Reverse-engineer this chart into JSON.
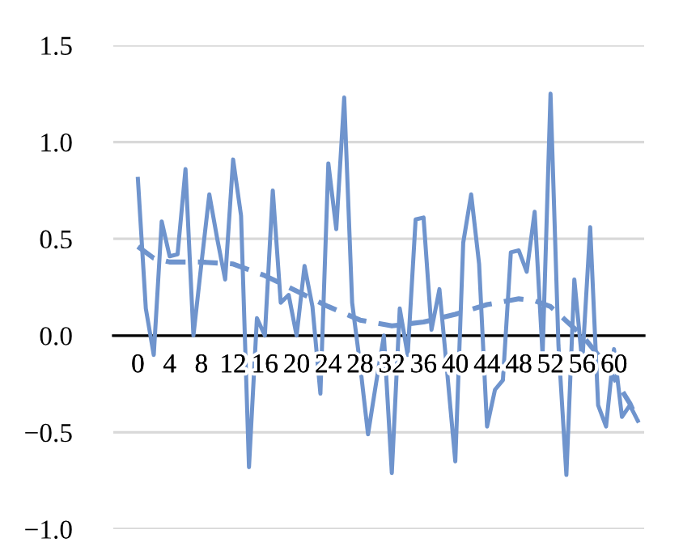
{
  "chart_data": {
    "type": "line",
    "categories": [
      "0",
      null,
      null,
      null,
      "4",
      null,
      null,
      null,
      "8",
      null,
      null,
      null,
      "12",
      null,
      null,
      null,
      "16",
      null,
      null,
      null,
      "20",
      null,
      null,
      null,
      "24",
      null,
      null,
      null,
      "28",
      null,
      null,
      null,
      "32",
      null,
      null,
      null,
      "36",
      null,
      null,
      null,
      "40",
      null,
      null,
      null,
      "44",
      null,
      null,
      null,
      "48",
      null,
      null,
      null,
      "52",
      null,
      null,
      null,
      "56",
      null,
      null,
      null,
      "60",
      null,
      null,
      null
    ],
    "series": [
      {
        "color": "#6f94cd",
        "line_style": "solid",
        "values": [
          0.81,
          0.14,
          -0.1,
          0.59,
          0.41,
          0.42,
          0.86,
          0.0,
          0.37,
          0.73,
          0.5,
          0.29,
          0.91,
          0.62,
          -0.68,
          0.09,
          0.0,
          0.75,
          0.17,
          0.21,
          0.0,
          0.36,
          0.15,
          -0.3,
          0.89,
          0.55,
          1.23,
          0.17,
          -0.15,
          -0.51,
          -0.25,
          0.0,
          -0.71,
          0.14,
          -0.1,
          0.6,
          0.61,
          0.03,
          0.24,
          -0.2,
          -0.65,
          0.48,
          0.73,
          0.37,
          -0.47,
          -0.28,
          -0.23,
          0.43,
          0.44,
          0.33,
          0.64,
          -0.1,
          1.25,
          -0.05,
          -0.72,
          0.29,
          -0.14,
          0.56,
          -0.36,
          -0.47,
          -0.07,
          -0.42,
          -0.36,
          -0.44
        ]
      },
      {
        "color": "#6f94cd",
        "line_style": "dashed",
        "values": [
          0.46,
          null,
          0.4,
          null,
          0.38,
          null,
          null,
          null,
          0.38,
          null,
          null,
          null,
          0.37,
          null,
          null,
          null,
          0.31,
          null,
          null,
          null,
          0.23,
          null,
          null,
          null,
          0.15,
          null,
          null,
          null,
          0.08,
          null,
          null,
          null,
          0.05,
          null,
          null,
          null,
          0.07,
          null,
          null,
          null,
          0.11,
          null,
          null,
          null,
          0.16,
          null,
          null,
          null,
          0.19,
          null,
          0.18,
          null,
          0.15,
          null,
          null,
          null,
          0.0,
          null,
          -0.1,
          null,
          -0.22,
          null,
          -0.35,
          -0.44
        ]
      }
    ],
    "ylim": [
      -1.0,
      1.5
    ],
    "yticks": [
      {
        "value": -1.0,
        "label": "−1.0"
      },
      {
        "value": -0.5,
        "label": "−0.5"
      },
      {
        "value": 0.0,
        "label": "0.0"
      },
      {
        "value": 0.5,
        "label": "0.5"
      },
      {
        "value": 1.0,
        "label": "1.0"
      },
      {
        "value": 1.5,
        "label": "1.5"
      }
    ],
    "grid": "y",
    "legend": false
  }
}
